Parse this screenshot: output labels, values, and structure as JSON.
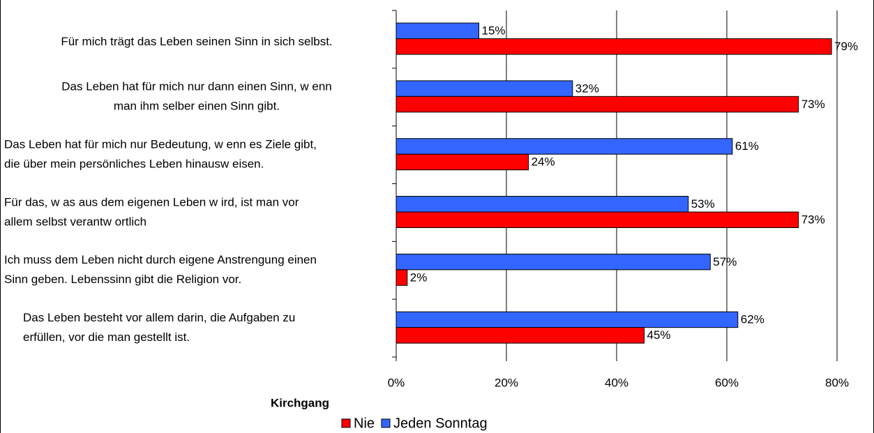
{
  "chart_data": {
    "type": "hbar",
    "categories": [
      [
        "Für mich trägt das Leben seinen Sinn in sich selbst."
      ],
      [
        "Das Leben hat für mich nur dann einen Sinn, w enn",
        "man ihm selber einen Sinn gibt."
      ],
      [
        "Das Leben hat für mich nur Bedeutung, w enn es Ziele gibt,",
        "die über mein persönliches Leben hinausw eisen."
      ],
      [
        "Für das, w as aus dem eigenen Leben w ird, ist man vor",
        "allem selbst verantw ortlich"
      ],
      [
        "Ich muss dem Leben nicht durch eigene Anstrengung einen",
        "Sinn geben. Lebenssinn gibt die Religion vor."
      ],
      [
        "Das Leben besteht vor allem darin, die Aufgaben zu",
        "erfüllen, vor die man gestellt ist."
      ]
    ],
    "series": [
      {
        "name": "Nie",
        "color": "#ff0000",
        "values": [
          79,
          73,
          24,
          73,
          2,
          45
        ],
        "value_labels": [
          "79%",
          "73%",
          "24%",
          "73%",
          "2%",
          "45%"
        ]
      },
      {
        "name": "Jeden Sonntag",
        "color": "#3366ff",
        "values": [
          15,
          32,
          61,
          53,
          57,
          62
        ],
        "value_labels": [
          "15%",
          "32%",
          "61%",
          "53%",
          "57%",
          "62%"
        ]
      }
    ],
    "xlim": [
      0,
      80
    ],
    "xticks": [
      {
        "value": 0,
        "label": "0%"
      },
      {
        "value": 20,
        "label": "20%"
      },
      {
        "value": 40,
        "label": "40%"
      },
      {
        "value": 60,
        "label": "60%"
      },
      {
        "value": 80,
        "label": "80%"
      }
    ],
    "grid": true,
    "legend_title": "Kirchgang"
  }
}
